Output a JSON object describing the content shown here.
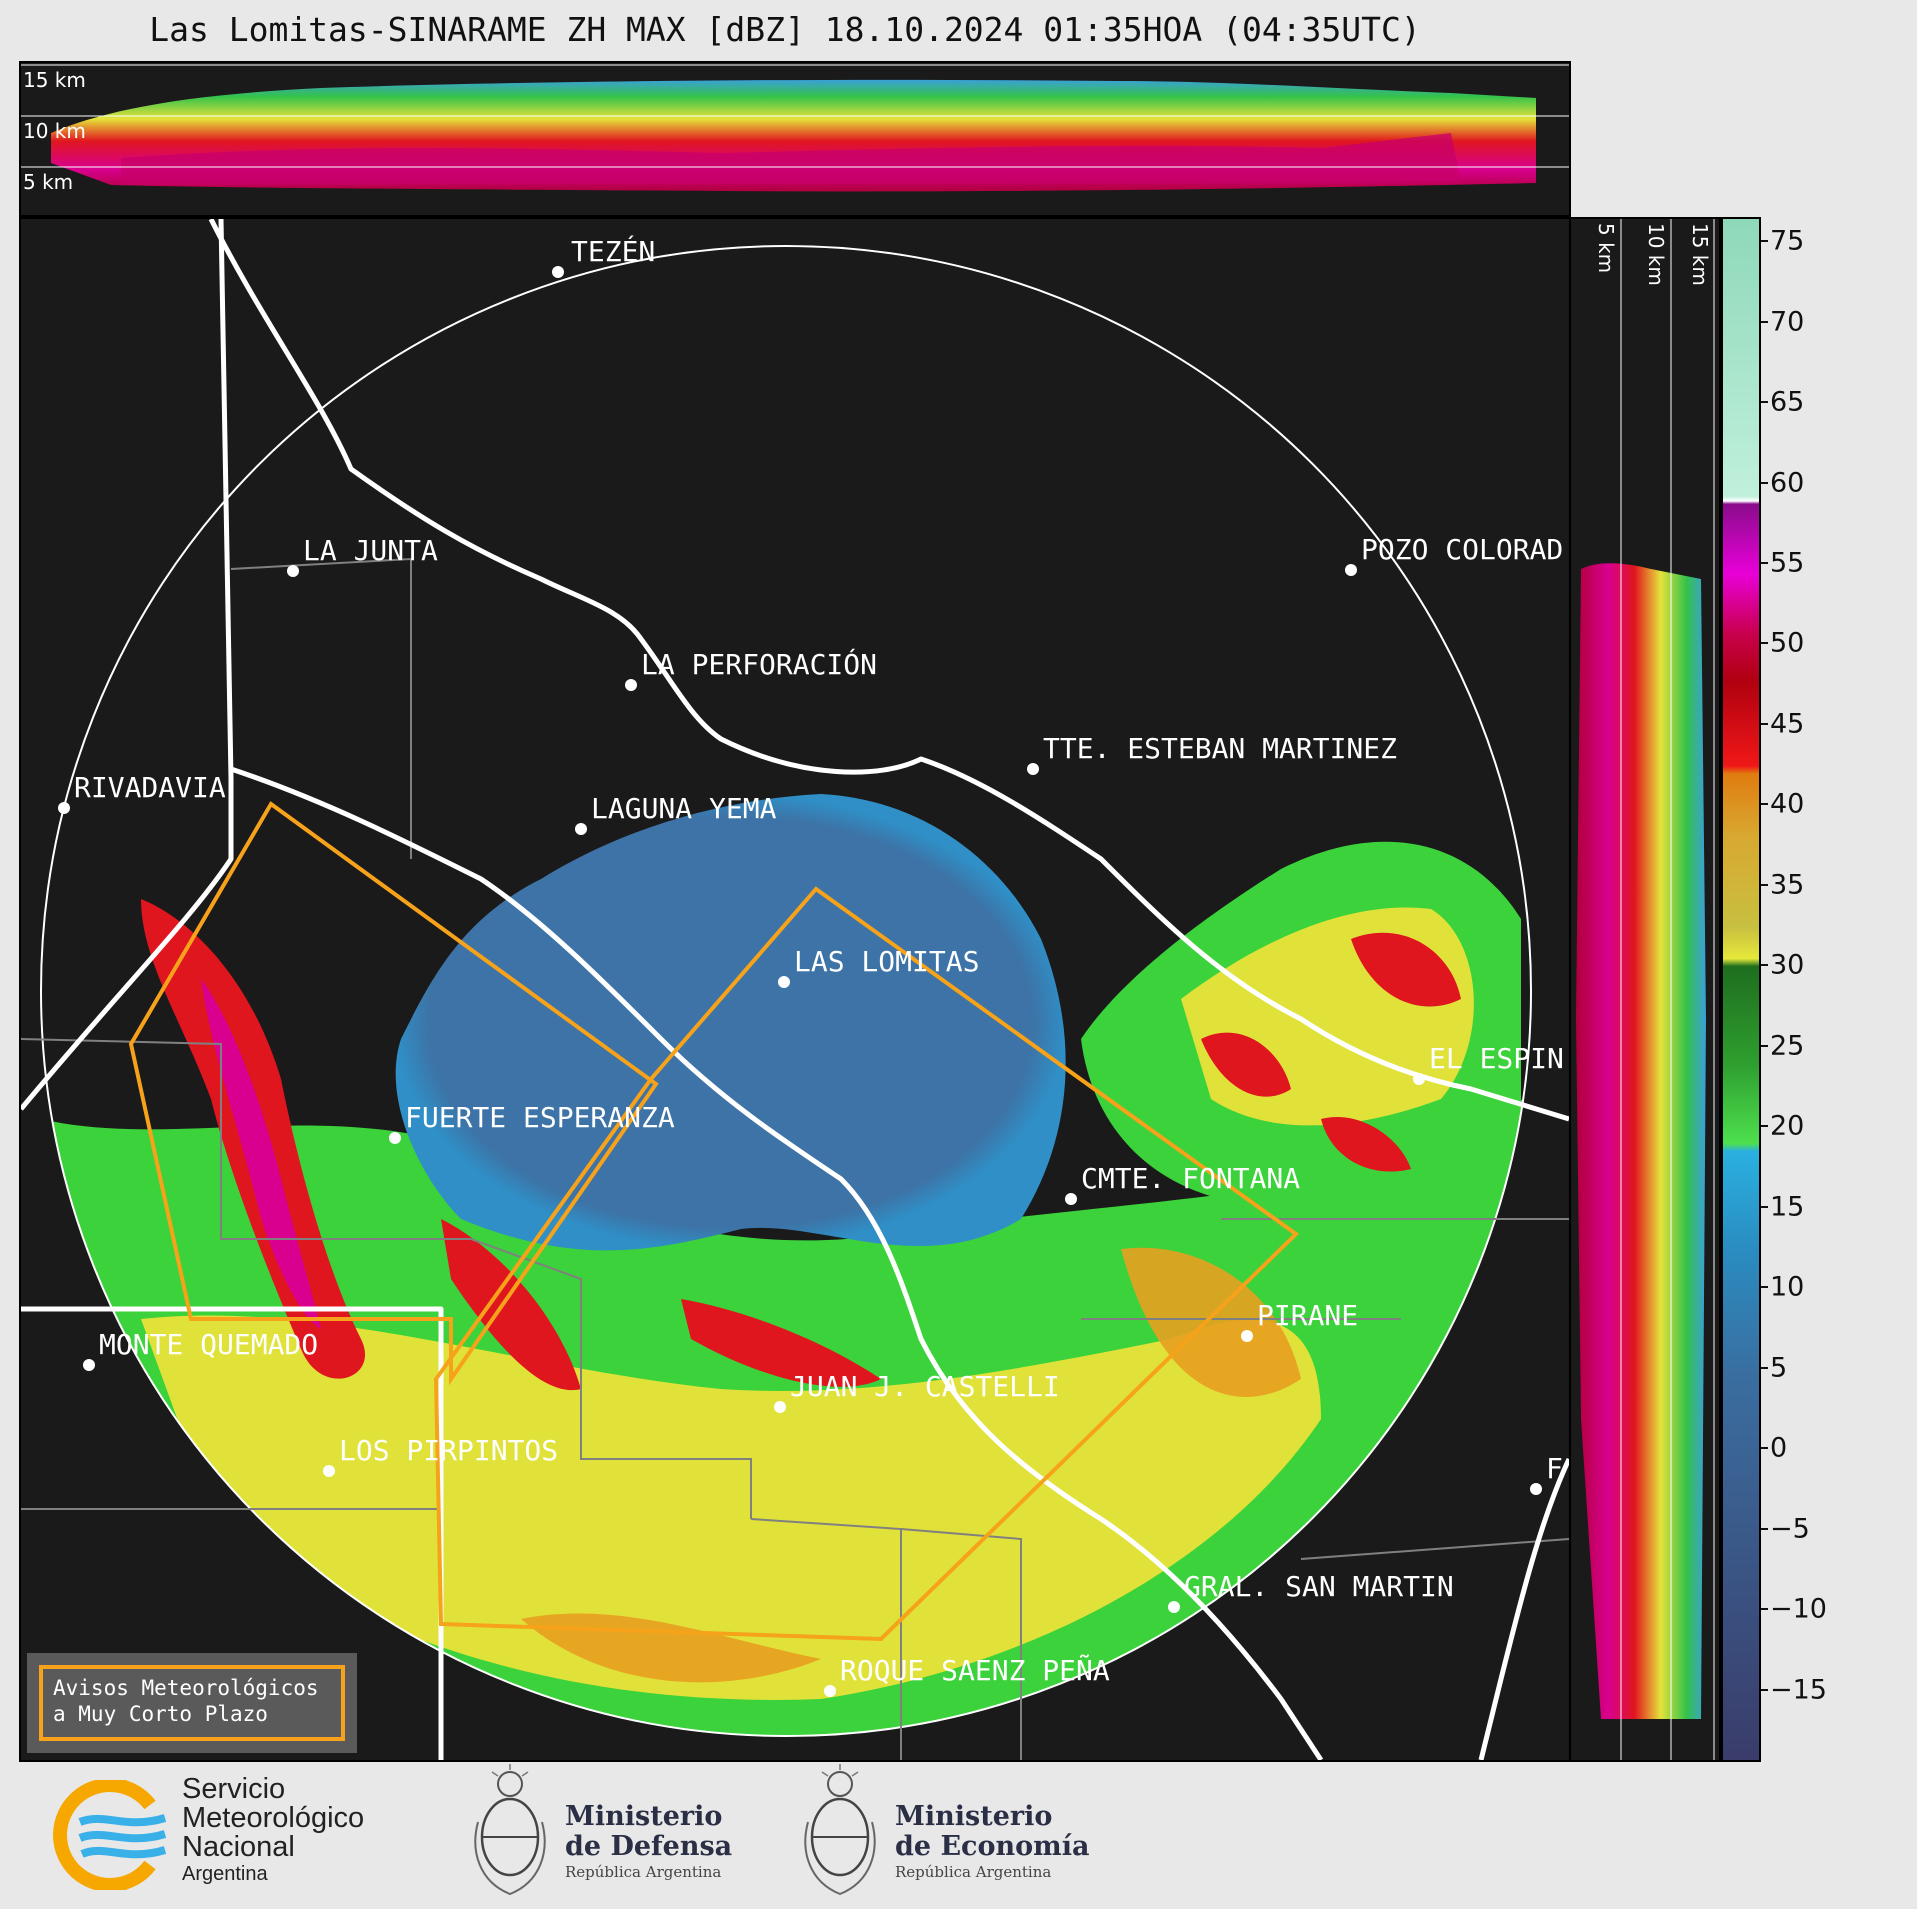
{
  "title": "Las Lomitas-SINARAME ZH MAX [dBZ] 18.10.2024 01:35HOA (04:35UTC)",
  "height_labels_top": [
    "15 km",
    "10 km",
    "5 km"
  ],
  "height_labels_side": [
    "5 km",
    "10 km",
    "15 km"
  ],
  "cities": [
    {
      "name": "TEZÉN"
    },
    {
      "name": "LA JUNTA"
    },
    {
      "name": "POZO COLORAD"
    },
    {
      "name": "LA PERFORACIÓN"
    },
    {
      "name": "TTE. ESTEBAN MARTINEZ"
    },
    {
      "name": "RIVADAVIA"
    },
    {
      "name": "LAGUNA YEMA"
    },
    {
      "name": "LAS LOMITAS"
    },
    {
      "name": "EL ESPIN"
    },
    {
      "name": "FUERTE ESPERANZA"
    },
    {
      "name": "CMTE. FONTANA"
    },
    {
      "name": "PIRANE"
    },
    {
      "name": "MONTE QUEMADO"
    },
    {
      "name": "JUAN J. CASTELLI"
    },
    {
      "name": "LOS PIRPINTOS"
    },
    {
      "name": "F"
    },
    {
      "name": "GRAL. SAN MARTIN"
    },
    {
      "name": "ROQUE SAENZ PEÑA"
    }
  ],
  "warning_box": {
    "line1": "Avisos Meteorológicos",
    "line2": "a Muy Corto Plazo"
  },
  "colorbar": {
    "ticks": [
      "75",
      "70",
      "65",
      "60",
      "55",
      "50",
      "45",
      "40",
      "35",
      "30",
      "25",
      "20",
      "15",
      "10",
      "5",
      "0",
      "−5",
      "−10",
      "−15"
    ],
    "tick_values": [
      75,
      70,
      65,
      60,
      55,
      50,
      45,
      40,
      35,
      30,
      25,
      20,
      15,
      10,
      5,
      0,
      -5,
      -10,
      -15
    ],
    "range": [
      -19.5,
      76.5
    ],
    "unit": "dBZ"
  },
  "logos": {
    "smn": {
      "line1": "Servicio",
      "line2": "Meteorológico",
      "line3": "Nacional",
      "line4": "Argentina"
    },
    "defensa": {
      "line1": "Ministerio",
      "line2": "de Defensa",
      "line3": "República Argentina"
    },
    "economia": {
      "line1": "Ministerio",
      "line2": "de Economía",
      "line3": "República Argentina"
    }
  },
  "colors": {
    "background": "#1a1a1a",
    "border_line": "#ffffff",
    "warning_polygon": "#f6a21a",
    "clear_air": "#3d73a6"
  }
}
